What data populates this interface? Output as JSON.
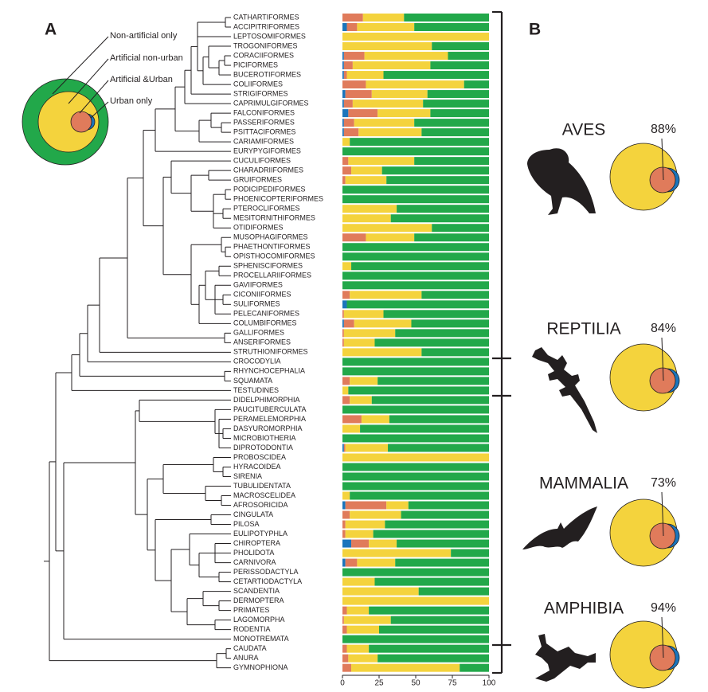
{
  "panel_labels": [
    "A",
    "B"
  ],
  "chart_data": {
    "type": "bar",
    "orientation": "horizontal",
    "stacked": true,
    "categories": [
      "CATHARTIFORMES",
      "ACCIPITRIFORMES",
      "LEPTOSOMIFORMES",
      "TROGONIFORMES",
      "CORACIIFORMES",
      "PICIFORMES",
      "BUCEROTIFORMES",
      "COLIIFORMES",
      "STRIGIFORMES",
      "CAPRIMULGIFORMES",
      "FALCONIFORMES",
      "PASSERIFORMES",
      "PSITTACIFORMES",
      "CARIAMIFORMES",
      "EURYPYGIFORMES",
      "CUCULIFORMES",
      "CHARADRIIFORMES",
      "GRUIFORMES",
      "PODICIPEDIFORMES",
      "PHOENICOPTERIFORMES",
      "PTEROCLIFORMES",
      "MESITORNITHIFORMES",
      "OTIDIFORMES",
      "MUSOPHAGIFORMES",
      "PHAETHONTIFORMES",
      "OPISTHOCOMIFORMES",
      "SPHENISCIFORMES",
      "PROCELLARIIFORMES",
      "GAVIIFORMES",
      "CICONIIFORMES",
      "SULIFORMES",
      "PELECANIFORMES",
      "COLUMBIFORMES",
      "GALLIFORMES",
      "ANSERIFORMES",
      "STRUTHIONIFORMES",
      "CROCODYLIA",
      "RHYNCHOCEPHALIA",
      "SQUAMATA",
      "TESTUDINES",
      "DIDELPHIMORPHIA",
      "PAUCITUBERCULATA",
      "PERAMELEMORPHIA",
      "DASYUROMORPHIA",
      "MICROBIOTHERIA",
      "DIPROTODONTIA",
      "PROBOSCIDEA",
      "HYRACOIDEA",
      "SIRENIA",
      "TUBULIDENTATA",
      "MACROSCELIDEA",
      "AFROSORICIDA",
      "CINGULATA",
      "PILOSA",
      "EULIPOTYPHLA",
      "CHIROPTERA",
      "PHOLIDOTA",
      "CARNIVORA",
      "PERISSODACTYLA",
      "CETARTIODACTYLA",
      "SCANDENTIA",
      "DERMOPTERA",
      "PRIMATES",
      "LAGOMORPHA",
      "RODENTIA",
      "MONOTREMATA",
      "CAUDATA",
      "ANURA",
      "GYMNOPHIONA"
    ],
    "series": [
      {
        "name": "Urban only",
        "color": "#1b75bc",
        "values": [
          0,
          3,
          0,
          0,
          1,
          1,
          1,
          0,
          2,
          1,
          4,
          1,
          1,
          0,
          0,
          0,
          0,
          0,
          0,
          0,
          0,
          0,
          0,
          0,
          0,
          0,
          0,
          0,
          0,
          0,
          3,
          0,
          1,
          0,
          0,
          0,
          0,
          0,
          0,
          0,
          0,
          0,
          0,
          0,
          0,
          1,
          0,
          0,
          0,
          0,
          0,
          2,
          0,
          0,
          0,
          6,
          0,
          2,
          0,
          0,
          0,
          0,
          0,
          0,
          0,
          0,
          0,
          0,
          0
        ]
      },
      {
        "name": "Artificial &Urban",
        "color": "#e07b5b",
        "values": [
          14,
          7,
          0,
          0,
          14,
          6,
          2,
          16,
          18,
          6,
          20,
          7,
          10,
          0,
          0,
          4,
          6,
          2,
          0,
          0,
          0,
          0,
          0,
          16,
          0,
          0,
          0,
          0,
          0,
          5,
          0,
          1,
          7,
          1,
          1,
          0,
          0,
          0,
          5,
          0,
          5,
          0,
          13,
          0,
          0,
          1,
          0,
          0,
          0,
          0,
          0,
          28,
          5,
          2,
          2,
          12,
          0,
          8,
          0,
          0,
          0,
          0,
          3,
          1,
          3,
          0,
          3,
          4,
          6
        ]
      },
      {
        "name": "Artificial non-urban",
        "color": "#f4d33d",
        "values": [
          28,
          39,
          100,
          61,
          57,
          53,
          25,
          67,
          38,
          48,
          36,
          41,
          43,
          5,
          0,
          45,
          21,
          28,
          0,
          0,
          37,
          33,
          61,
          33,
          0,
          0,
          6,
          0,
          0,
          49,
          0,
          27,
          39,
          35,
          21,
          54,
          0,
          0,
          19,
          4,
          15,
          0,
          19,
          12,
          0,
          29,
          100,
          0,
          0,
          0,
          5,
          15,
          35,
          27,
          19,
          19,
          74,
          26,
          0,
          22,
          52,
          100,
          15,
          32,
          22,
          0,
          15,
          20,
          74
        ]
      },
      {
        "name": "Non-artificial only",
        "color": "#22a84a",
        "values": [
          58,
          51,
          0,
          39,
          28,
          40,
          72,
          17,
          42,
          45,
          40,
          51,
          46,
          95,
          100,
          51,
          73,
          70,
          100,
          100,
          63,
          67,
          39,
          51,
          100,
          100,
          94,
          100,
          100,
          46,
          97,
          72,
          53,
          64,
          78,
          46,
          100,
          100,
          76,
          96,
          80,
          100,
          68,
          88,
          100,
          69,
          0,
          100,
          100,
          100,
          95,
          55,
          60,
          71,
          79,
          63,
          26,
          64,
          100,
          78,
          48,
          0,
          82,
          67,
          75,
          100,
          82,
          76,
          20
        ]
      }
    ],
    "xlim": [
      0,
      100
    ],
    "xticks": [
      0,
      25,
      50,
      75,
      100
    ]
  },
  "panel_b": {
    "classes": [
      "AVES",
      "REPTILIA",
      "MAMMALIA",
      "AMPHIBIA"
    ],
    "values": [
      88,
      84,
      73,
      94
    ],
    "value_labels": [
      "88%",
      "84%",
      "73%",
      "94%"
    ]
  }
}
